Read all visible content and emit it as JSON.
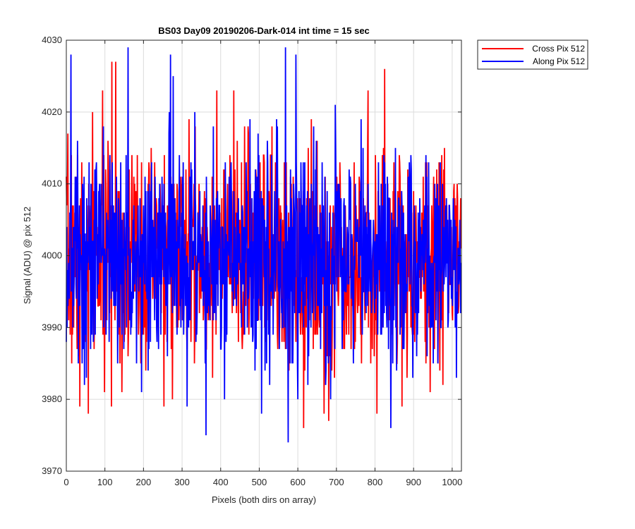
{
  "chart_data": {
    "type": "line",
    "title": "BS03 Day09 20190206-Dark-014 int time = 15 sec",
    "xlabel": "Pixels (both dirs on array)",
    "ylabel": "Signal (ADU) @ pix 512",
    "xlim": [
      0,
      1024
    ],
    "ylim": [
      3970,
      4030
    ],
    "xticks": [
      0,
      100,
      200,
      300,
      400,
      500,
      600,
      700,
      800,
      900,
      1000
    ],
    "yticks": [
      3970,
      3980,
      3990,
      4000,
      4010,
      4020,
      4030
    ],
    "grid": true,
    "legend_position": "outside-top-right",
    "n_points": 1024,
    "series": [
      {
        "name": "Cross Pix 512",
        "color": "#ff0000",
        "mean": 4000,
        "min": 3976,
        "max": 4027,
        "extremes": [
          [
            35,
            3979
          ],
          [
            57,
            3978
          ],
          [
            118,
            4027
          ],
          [
            128,
            4027
          ],
          [
            615,
            3976
          ],
          [
            680,
            3977
          ],
          [
            805,
            3978
          ],
          [
            825,
            4026
          ],
          [
            870,
            3979
          ]
        ],
        "seed": 7
      },
      {
        "name": "Along Pix 512",
        "color": "#0000ff",
        "mean": 4000,
        "min": 3974,
        "max": 4029,
        "extremes": [
          [
            12,
            4028
          ],
          [
            160,
            4029
          ],
          [
            270,
            4028
          ],
          [
            313,
            3979
          ],
          [
            362,
            3975
          ],
          [
            410,
            3980
          ],
          [
            568,
            4029
          ],
          [
            575,
            3974
          ],
          [
            595,
            4028
          ]
        ],
        "seed": 13
      }
    ]
  }
}
